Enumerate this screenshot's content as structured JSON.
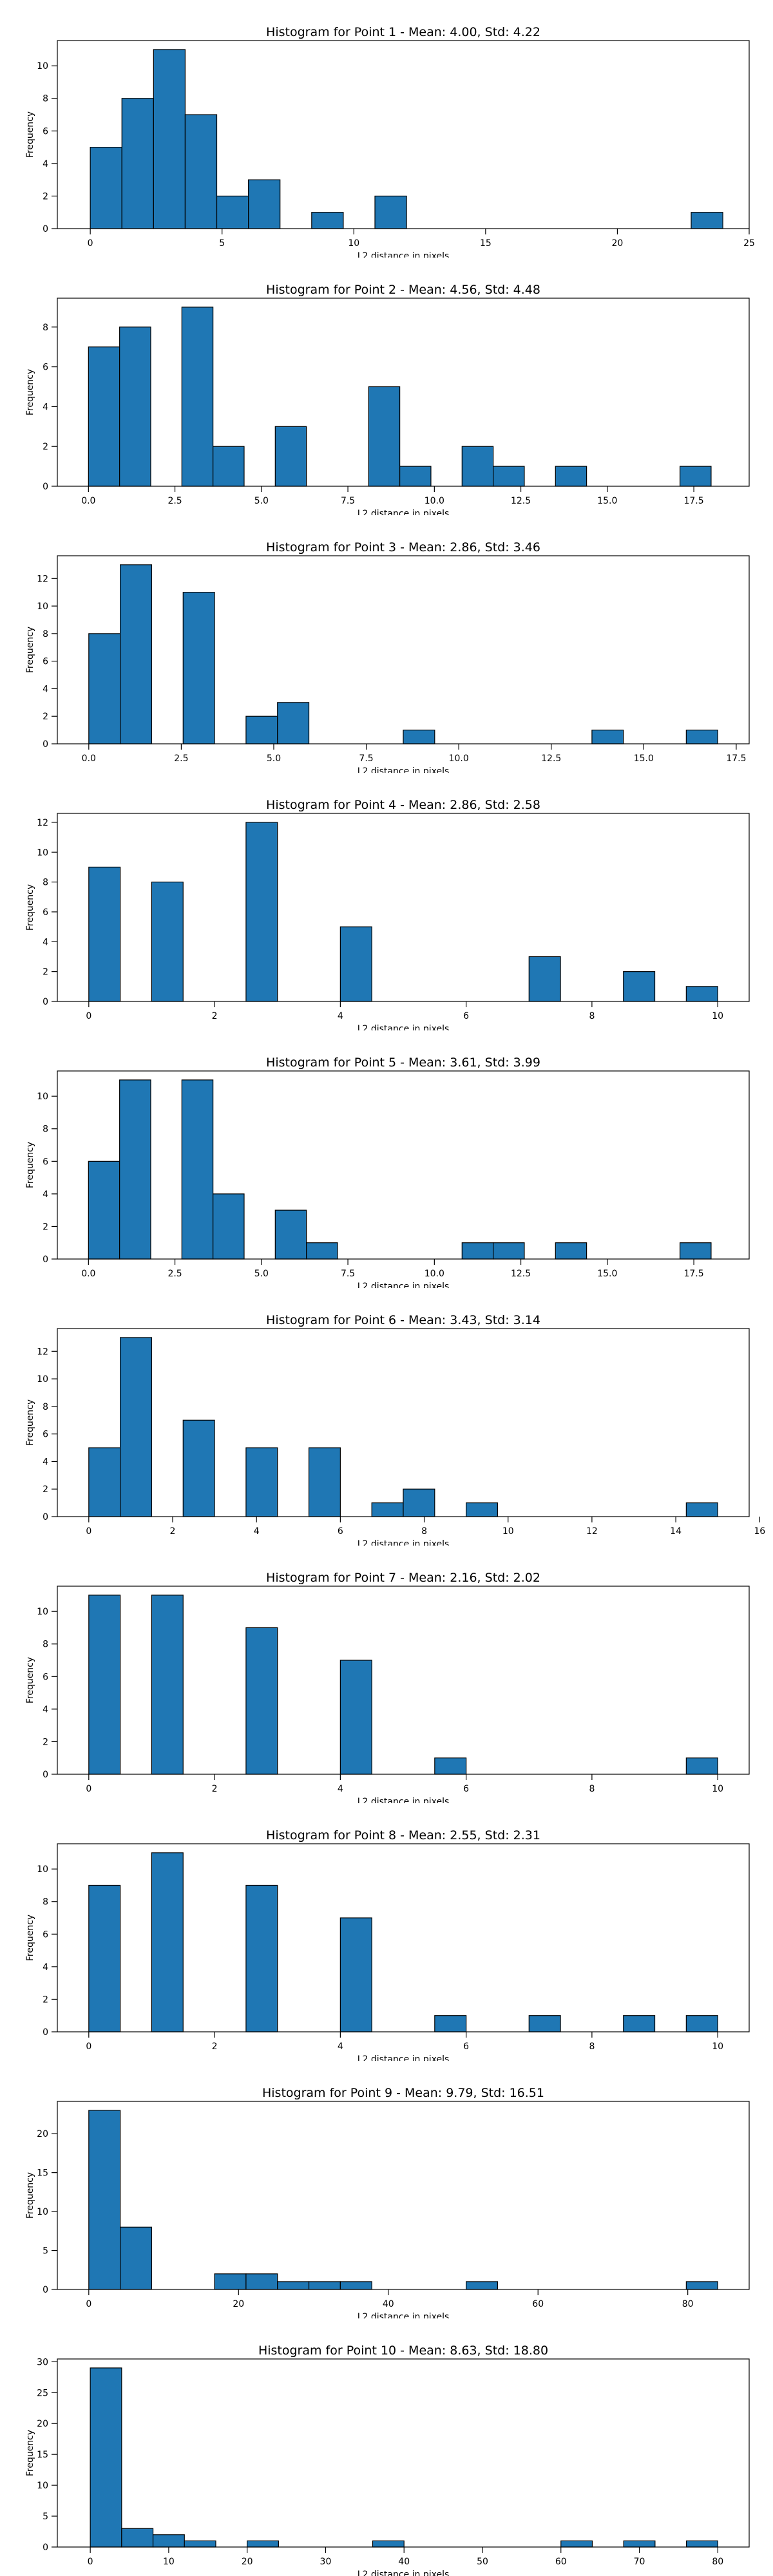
{
  "chart_data": [
    {
      "type": "bar",
      "title": "Histogram for Point 1 - Mean: 4.00, Std: 4.22",
      "xlabel": "L2 distance in pixels",
      "ylabel": "Frequency",
      "xlim": [
        -1.25,
        25.0
      ],
      "ylim": [
        0,
        11.55
      ],
      "xticks": [
        0,
        5,
        10,
        15,
        20,
        25
      ],
      "xtick_labels": [
        "0",
        "5",
        "10",
        "15",
        "20",
        "25"
      ],
      "yticks": [
        0,
        2,
        4,
        6,
        8,
        10
      ],
      "ytick_labels": [
        "0",
        "2",
        "4",
        "6",
        "8",
        "10"
      ],
      "bins": [
        {
          "x0": 0.0,
          "x1": 1.2,
          "count": 5
        },
        {
          "x0": 1.2,
          "x1": 2.4,
          "count": 8
        },
        {
          "x0": 2.4,
          "x1": 3.6,
          "count": 11
        },
        {
          "x0": 3.6,
          "x1": 4.8,
          "count": 7
        },
        {
          "x0": 4.8,
          "x1": 6.0,
          "count": 2
        },
        {
          "x0": 6.0,
          "x1": 7.2,
          "count": 3
        },
        {
          "x0": 8.4,
          "x1": 9.6,
          "count": 1
        },
        {
          "x0": 10.8,
          "x1": 12.0,
          "count": 2
        },
        {
          "x0": 22.8,
          "x1": 24.0,
          "count": 1
        }
      ],
      "bar_color": "#1f77b4",
      "edge_color": "#000000",
      "grid": false
    },
    {
      "type": "bar",
      "title": "Histogram for Point 2 - Mean: 4.56, Std: 4.48",
      "xlabel": "L2 distance in pixels",
      "ylabel": "Frequency",
      "xlim": [
        -0.9,
        19.1
      ],
      "ylim": [
        0,
        9.45
      ],
      "xticks": [
        0,
        2.5,
        5,
        7.5,
        10,
        12.5,
        15,
        17.5
      ],
      "xtick_labels": [
        "0.0",
        "2.5",
        "5.0",
        "7.5",
        "10.0",
        "12.5",
        "15.0",
        "17.5"
      ],
      "yticks": [
        0,
        2,
        4,
        6,
        8
      ],
      "ytick_labels": [
        "0",
        "2",
        "4",
        "6",
        "8"
      ],
      "bins": [
        {
          "x0": 0.0,
          "x1": 0.9,
          "count": 7
        },
        {
          "x0": 0.9,
          "x1": 1.8,
          "count": 8
        },
        {
          "x0": 2.7,
          "x1": 3.6,
          "count": 9
        },
        {
          "x0": 3.6,
          "x1": 4.5,
          "count": 2
        },
        {
          "x0": 5.4,
          "x1": 6.3,
          "count": 3
        },
        {
          "x0": 8.1,
          "x1": 9.0,
          "count": 5
        },
        {
          "x0": 9.0,
          "x1": 9.9,
          "count": 1
        },
        {
          "x0": 10.8,
          "x1": 11.7,
          "count": 2
        },
        {
          "x0": 11.7,
          "x1": 12.6,
          "count": 1
        },
        {
          "x0": 13.5,
          "x1": 14.4,
          "count": 1
        },
        {
          "x0": 17.1,
          "x1": 18.0,
          "count": 1
        }
      ],
      "bar_color": "#1f77b4",
      "edge_color": "#000000",
      "grid": false
    },
    {
      "type": "bar",
      "title": "Histogram for Point 3 - Mean: 2.86, Std: 3.46",
      "xlabel": "L2 distance in pixels",
      "ylabel": "Frequency",
      "xlim": [
        -0.85,
        17.85
      ],
      "ylim": [
        0,
        13.65
      ],
      "xticks": [
        0,
        2.5,
        5,
        7.5,
        10,
        12.5,
        15,
        17.5
      ],
      "xtick_labels": [
        "0.0",
        "2.5",
        "5.0",
        "7.5",
        "10.0",
        "12.5",
        "15.0",
        "17.5"
      ],
      "yticks": [
        0,
        2,
        4,
        6,
        8,
        10,
        12
      ],
      "ytick_labels": [
        "0",
        "2",
        "4",
        "6",
        "8",
        "10",
        "12"
      ],
      "bins": [
        {
          "x0": 0.0,
          "x1": 0.85,
          "count": 8
        },
        {
          "x0": 0.85,
          "x1": 1.7,
          "count": 13
        },
        {
          "x0": 2.55,
          "x1": 3.4,
          "count": 11
        },
        {
          "x0": 4.25,
          "x1": 5.1,
          "count": 2
        },
        {
          "x0": 5.1,
          "x1": 5.95,
          "count": 3
        },
        {
          "x0": 8.5,
          "x1": 9.35,
          "count": 1
        },
        {
          "x0": 13.6,
          "x1": 14.45,
          "count": 1
        },
        {
          "x0": 16.15,
          "x1": 17.0,
          "count": 1
        }
      ],
      "bar_color": "#1f77b4",
      "edge_color": "#000000",
      "grid": false
    },
    {
      "type": "bar",
      "title": "Histogram for Point 4 - Mean: 2.86, Std: 2.58",
      "xlabel": "L2 distance in pixels",
      "ylabel": "Frequency",
      "xlim": [
        -0.5,
        10.5
      ],
      "ylim": [
        0,
        12.6
      ],
      "xticks": [
        0,
        2,
        4,
        6,
        8,
        10
      ],
      "xtick_labels": [
        "0",
        "2",
        "4",
        "6",
        "8",
        "10"
      ],
      "yticks": [
        0,
        2,
        4,
        6,
        8,
        10,
        12
      ],
      "ytick_labels": [
        "0",
        "2",
        "4",
        "6",
        "8",
        "10",
        "12"
      ],
      "bins": [
        {
          "x0": 0.0,
          "x1": 0.5,
          "count": 9
        },
        {
          "x0": 1.0,
          "x1": 1.5,
          "count": 8
        },
        {
          "x0": 2.5,
          "x1": 3.0,
          "count": 12
        },
        {
          "x0": 4.0,
          "x1": 4.5,
          "count": 5
        },
        {
          "x0": 7.0,
          "x1": 7.5,
          "count": 3
        },
        {
          "x0": 8.5,
          "x1": 9.0,
          "count": 2
        },
        {
          "x0": 9.5,
          "x1": 10.0,
          "count": 1
        }
      ],
      "bar_color": "#1f77b4",
      "edge_color": "#000000",
      "grid": false
    },
    {
      "type": "bar",
      "title": "Histogram for Point 5 - Mean: 3.61, Std: 3.99",
      "xlabel": "L2 distance in pixels",
      "ylabel": "Frequency",
      "xlim": [
        -0.9,
        19.1
      ],
      "ylim": [
        0,
        11.55
      ],
      "xticks": [
        0,
        2.5,
        5,
        7.5,
        10,
        12.5,
        15,
        17.5
      ],
      "xtick_labels": [
        "0.0",
        "2.5",
        "5.0",
        "7.5",
        "10.0",
        "12.5",
        "15.0",
        "17.5"
      ],
      "yticks": [
        0,
        2,
        4,
        6,
        8,
        10
      ],
      "ytick_labels": [
        "0",
        "2",
        "4",
        "6",
        "8",
        "10"
      ],
      "bins": [
        {
          "x0": 0.0,
          "x1": 0.9,
          "count": 6
        },
        {
          "x0": 0.9,
          "x1": 1.8,
          "count": 11
        },
        {
          "x0": 2.7,
          "x1": 3.6,
          "count": 11
        },
        {
          "x0": 3.6,
          "x1": 4.5,
          "count": 4
        },
        {
          "x0": 5.4,
          "x1": 6.3,
          "count": 3
        },
        {
          "x0": 6.3,
          "x1": 7.2,
          "count": 1
        },
        {
          "x0": 10.8,
          "x1": 11.7,
          "count": 1
        },
        {
          "x0": 11.7,
          "x1": 12.6,
          "count": 1
        },
        {
          "x0": 13.5,
          "x1": 14.4,
          "count": 1
        },
        {
          "x0": 17.1,
          "x1": 18.0,
          "count": 1
        }
      ],
      "bar_color": "#1f77b4",
      "edge_color": "#000000",
      "grid": false
    },
    {
      "type": "bar",
      "title": "Histogram for Point 6 - Mean: 3.43, Std: 3.14",
      "xlabel": "L2 distance in pixels",
      "ylabel": "Frequency",
      "xlim": [
        -0.75,
        15.75
      ],
      "ylim": [
        0,
        13.65
      ],
      "xticks": [
        0,
        2,
        4,
        6,
        8,
        10,
        12,
        14,
        16
      ],
      "xtick_labels": [
        "0",
        "2",
        "4",
        "6",
        "8",
        "10",
        "12",
        "14",
        "16"
      ],
      "yticks": [
        0,
        2,
        4,
        6,
        8,
        10,
        12
      ],
      "ytick_labels": [
        "0",
        "2",
        "4",
        "6",
        "8",
        "10",
        "12"
      ],
      "bins": [
        {
          "x0": 0.0,
          "x1": 0.75,
          "count": 5
        },
        {
          "x0": 0.75,
          "x1": 1.5,
          "count": 13
        },
        {
          "x0": 2.25,
          "x1": 3.0,
          "count": 7
        },
        {
          "x0": 3.75,
          "x1": 4.5,
          "count": 5
        },
        {
          "x0": 5.25,
          "x1": 6.0,
          "count": 5
        },
        {
          "x0": 6.75,
          "x1": 7.5,
          "count": 1
        },
        {
          "x0": 7.5,
          "x1": 8.25,
          "count": 2
        },
        {
          "x0": 9.0,
          "x1": 9.75,
          "count": 1
        },
        {
          "x0": 14.25,
          "x1": 15.0,
          "count": 1
        }
      ],
      "bar_color": "#1f77b4",
      "edge_color": "#000000",
      "grid": false
    },
    {
      "type": "bar",
      "title": "Histogram for Point 7 - Mean: 2.16, Std: 2.02",
      "xlabel": "L2 distance in pixels",
      "ylabel": "Frequency",
      "xlim": [
        -0.5,
        10.5
      ],
      "ylim": [
        0,
        11.55
      ],
      "xticks": [
        0,
        2,
        4,
        6,
        8,
        10
      ],
      "xtick_labels": [
        "0",
        "2",
        "4",
        "6",
        "8",
        "10"
      ],
      "yticks": [
        0,
        2,
        4,
        6,
        8,
        10
      ],
      "ytick_labels": [
        "0",
        "2",
        "4",
        "6",
        "8",
        "10"
      ],
      "bins": [
        {
          "x0": 0.0,
          "x1": 0.5,
          "count": 11
        },
        {
          "x0": 1.0,
          "x1": 1.5,
          "count": 11
        },
        {
          "x0": 2.5,
          "x1": 3.0,
          "count": 9
        },
        {
          "x0": 4.0,
          "x1": 4.5,
          "count": 7
        },
        {
          "x0": 5.5,
          "x1": 6.0,
          "count": 1
        },
        {
          "x0": 9.5,
          "x1": 10.0,
          "count": 1
        }
      ],
      "bar_color": "#1f77b4",
      "edge_color": "#000000",
      "grid": false
    },
    {
      "type": "bar",
      "title": "Histogram for Point 8 - Mean: 2.55, Std: 2.31",
      "xlabel": "L2 distance in pixels",
      "ylabel": "Frequency",
      "xlim": [
        -0.5,
        10.5
      ],
      "ylim": [
        0,
        11.55
      ],
      "xticks": [
        0,
        2,
        4,
        6,
        8,
        10
      ],
      "xtick_labels": [
        "0",
        "2",
        "4",
        "6",
        "8",
        "10"
      ],
      "yticks": [
        0,
        2,
        4,
        6,
        8,
        10
      ],
      "ytick_labels": [
        "0",
        "2",
        "4",
        "6",
        "8",
        "10"
      ],
      "bins": [
        {
          "x0": 0.0,
          "x1": 0.5,
          "count": 9
        },
        {
          "x0": 1.0,
          "x1": 1.5,
          "count": 11
        },
        {
          "x0": 2.5,
          "x1": 3.0,
          "count": 9
        },
        {
          "x0": 4.0,
          "x1": 4.5,
          "count": 7
        },
        {
          "x0": 5.5,
          "x1": 6.0,
          "count": 1
        },
        {
          "x0": 7.0,
          "x1": 7.5,
          "count": 1
        },
        {
          "x0": 8.5,
          "x1": 9.0,
          "count": 1
        },
        {
          "x0": 9.5,
          "x1": 10.0,
          "count": 1
        }
      ],
      "bar_color": "#1f77b4",
      "edge_color": "#000000",
      "grid": false
    },
    {
      "type": "bar",
      "title": "Histogram for Point 9 - Mean: 9.79, Std: 16.51",
      "xlabel": "L2 distance in pixels",
      "ylabel": "Frequency",
      "xlim": [
        -4.2,
        88.2
      ],
      "ylim": [
        0,
        24.15
      ],
      "xticks": [
        0,
        20,
        40,
        60,
        80
      ],
      "xtick_labels": [
        "0",
        "20",
        "40",
        "60",
        "80"
      ],
      "yticks": [
        0,
        5,
        10,
        15,
        20
      ],
      "ytick_labels": [
        "0",
        "5",
        "10",
        "15",
        "20"
      ],
      "bins": [
        {
          "x0": 0.0,
          "x1": 4.2,
          "count": 23
        },
        {
          "x0": 4.2,
          "x1": 8.4,
          "count": 8
        },
        {
          "x0": 16.8,
          "x1": 21.0,
          "count": 2
        },
        {
          "x0": 21.0,
          "x1": 25.2,
          "count": 2
        },
        {
          "x0": 25.2,
          "x1": 29.4,
          "count": 1
        },
        {
          "x0": 29.4,
          "x1": 33.6,
          "count": 1
        },
        {
          "x0": 33.6,
          "x1": 37.8,
          "count": 1
        },
        {
          "x0": 50.4,
          "x1": 54.6,
          "count": 1
        },
        {
          "x0": 79.8,
          "x1": 84.0,
          "count": 1
        }
      ],
      "bar_color": "#1f77b4",
      "edge_color": "#000000",
      "grid": false
    },
    {
      "type": "bar",
      "title": "Histogram for Point 10 - Mean: 8.63, Std: 18.80",
      "xlabel": "L2 distance in pixels",
      "ylabel": "Frequency",
      "xlim": [
        -4.2,
        84.0
      ],
      "ylim": [
        0,
        30.45
      ],
      "xticks": [
        0,
        10,
        20,
        30,
        40,
        50,
        60,
        70,
        80
      ],
      "xtick_labels": [
        "0",
        "10",
        "20",
        "30",
        "40",
        "50",
        "60",
        "70",
        "80"
      ],
      "yticks": [
        0,
        5,
        10,
        15,
        20,
        25,
        30
      ],
      "ytick_labels": [
        "0",
        "5",
        "10",
        "15",
        "20",
        "25",
        "30"
      ],
      "bins": [
        {
          "x0": 0.0,
          "x1": 4.0,
          "count": 29
        },
        {
          "x0": 4.0,
          "x1": 8.0,
          "count": 3
        },
        {
          "x0": 8.0,
          "x1": 12.0,
          "count": 2
        },
        {
          "x0": 12.0,
          "x1": 16.0,
          "count": 1
        },
        {
          "x0": 20.0,
          "x1": 24.0,
          "count": 1
        },
        {
          "x0": 36.0,
          "x1": 40.0,
          "count": 1
        },
        {
          "x0": 60.0,
          "x1": 64.0,
          "count": 1
        },
        {
          "x0": 68.0,
          "x1": 72.0,
          "count": 1
        },
        {
          "x0": 76.0,
          "x1": 80.0,
          "count": 1
        }
      ],
      "bar_color": "#1f77b4",
      "edge_color": "#000000",
      "grid": false
    }
  ]
}
